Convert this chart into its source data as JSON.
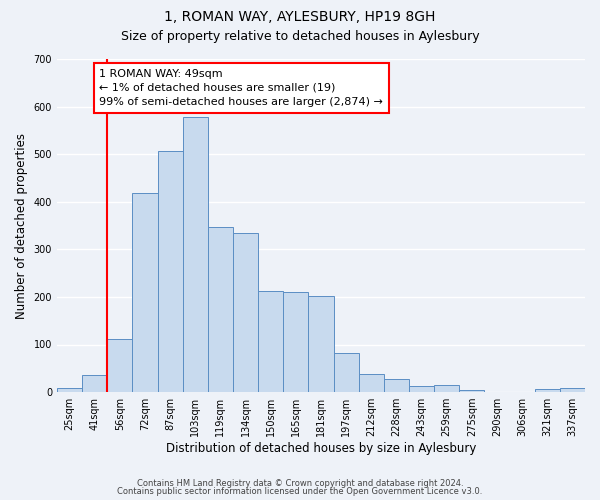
{
  "title": "1, ROMAN WAY, AYLESBURY, HP19 8GH",
  "subtitle": "Size of property relative to detached houses in Aylesbury",
  "xlabel": "Distribution of detached houses by size in Aylesbury",
  "ylabel": "Number of detached properties",
  "bar_labels": [
    "25sqm",
    "41sqm",
    "56sqm",
    "72sqm",
    "87sqm",
    "103sqm",
    "119sqm",
    "134sqm",
    "150sqm",
    "165sqm",
    "181sqm",
    "197sqm",
    "212sqm",
    "228sqm",
    "243sqm",
    "259sqm",
    "275sqm",
    "290sqm",
    "306sqm",
    "321sqm",
    "337sqm"
  ],
  "bar_heights": [
    8,
    35,
    112,
    418,
    507,
    578,
    347,
    335,
    212,
    210,
    202,
    82,
    38,
    27,
    13,
    15,
    4,
    0,
    0,
    7,
    8
  ],
  "bar_color": "#c8daee",
  "bar_edge_color": "#5b8ec4",
  "ylim": [
    0,
    700
  ],
  "yticks": [
    0,
    100,
    200,
    300,
    400,
    500,
    600,
    700
  ],
  "red_line_x": 2,
  "property_line_label": "1 ROMAN WAY: 49sqm",
  "annotation_line1": "← 1% of detached houses are smaller (19)",
  "annotation_line2": "99% of semi-detached houses are larger (2,874) →",
  "footer_line1": "Contains HM Land Registry data © Crown copyright and database right 2024.",
  "footer_line2": "Contains public sector information licensed under the Open Government Licence v3.0.",
  "background_color": "#eef2f8",
  "grid_color": "#ffffff",
  "title_fontsize": 10,
  "subtitle_fontsize": 9,
  "axis_label_fontsize": 8.5,
  "tick_fontsize": 7
}
